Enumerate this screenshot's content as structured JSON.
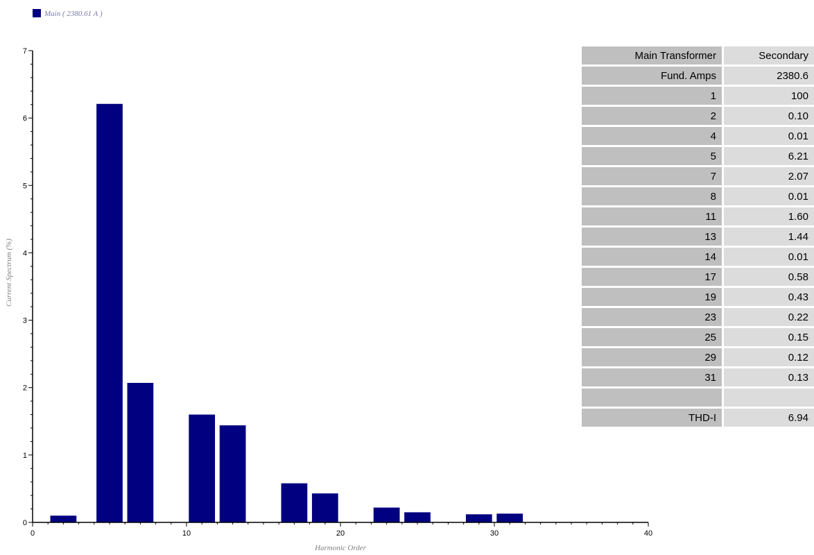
{
  "legend": {
    "label": "Main ( 2380.61 A )",
    "color": "#000080"
  },
  "chart_data": {
    "type": "bar",
    "xlabel": "Harmonic Order",
    "ylabel": "Current Spectrum (%)",
    "xlim": [
      0,
      40
    ],
    "ylim": [
      0,
      7
    ],
    "xticks": [
      0,
      10,
      20,
      30,
      40
    ],
    "yticks": [
      0,
      1,
      2,
      3,
      4,
      5,
      6,
      7
    ],
    "series": [
      {
        "name": "Main ( 2380.61 A )",
        "color": "#000080",
        "x": [
          2,
          5,
          7,
          11,
          13,
          17,
          19,
          23,
          25,
          29,
          31
        ],
        "values": [
          0.1,
          6.21,
          2.07,
          1.6,
          1.44,
          0.58,
          0.43,
          0.22,
          0.15,
          0.12,
          0.13
        ]
      }
    ],
    "grid": false,
    "legend_position": "top-left"
  },
  "table": {
    "header": [
      "Main Transformer",
      "Secondary"
    ],
    "rows": [
      [
        "Fund. Amps",
        "2380.6"
      ],
      [
        "1",
        "100"
      ],
      [
        "2",
        "0.10"
      ],
      [
        "4",
        "0.01"
      ],
      [
        "5",
        "6.21"
      ],
      [
        "7",
        "2.07"
      ],
      [
        "8",
        "0.01"
      ],
      [
        "11",
        "1.60"
      ],
      [
        "13",
        "1.44"
      ],
      [
        "14",
        "0.01"
      ],
      [
        "17",
        "0.58"
      ],
      [
        "19",
        "0.43"
      ],
      [
        "23",
        "0.22"
      ],
      [
        "25",
        "0.15"
      ],
      [
        "29",
        "0.12"
      ],
      [
        "31",
        "0.13"
      ],
      [
        "",
        ""
      ],
      [
        "THD-I",
        "6.94"
      ]
    ]
  }
}
